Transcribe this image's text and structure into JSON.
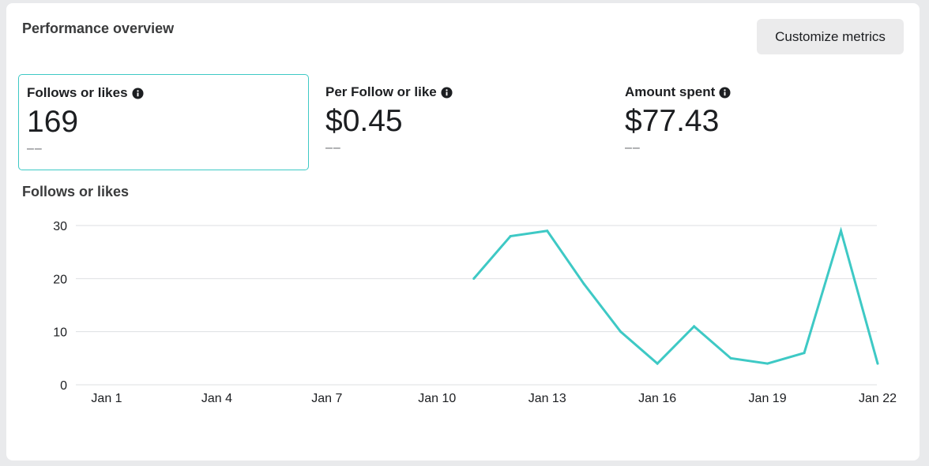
{
  "header": {
    "title": "Performance overview",
    "customize_label": "Customize metrics"
  },
  "metrics": [
    {
      "label": "Follows or likes",
      "value": "169",
      "compare": "––",
      "selected": true
    },
    {
      "label": "Per Follow or like",
      "value": "$0.45",
      "compare": "––",
      "selected": false
    },
    {
      "label": "Amount spent",
      "value": "$77.43",
      "compare": "––",
      "selected": false
    }
  ],
  "colors": {
    "accent": "#3ec9c5",
    "gridline": "#dddfe2",
    "button_bg": "#ebebec"
  },
  "icons": {
    "info": "info-circle-icon"
  },
  "chart_data": {
    "type": "line",
    "title": "Follows or likes",
    "xlabel": "",
    "ylabel": "",
    "x": [
      "Jan 11",
      "Jan 12",
      "Jan 13",
      "Jan 14",
      "Jan 15",
      "Jan 16",
      "Jan 17",
      "Jan 18",
      "Jan 19",
      "Jan 20",
      "Jan 21",
      "Jan 22"
    ],
    "x_domain": [
      "Jan 1",
      "Jan 22"
    ],
    "x_ticks": [
      "Jan 1",
      "Jan 4",
      "Jan 7",
      "Jan 10",
      "Jan 13",
      "Jan 16",
      "Jan 19",
      "Jan 22"
    ],
    "series": [
      {
        "values": [
          20,
          28,
          29,
          19,
          10,
          4,
          11,
          5,
          4,
          6,
          29,
          4
        ]
      }
    ],
    "y_ticks": [
      0,
      10,
      20,
      30
    ],
    "ylim": [
      0,
      30
    ],
    "grid": true,
    "legend": "none"
  }
}
